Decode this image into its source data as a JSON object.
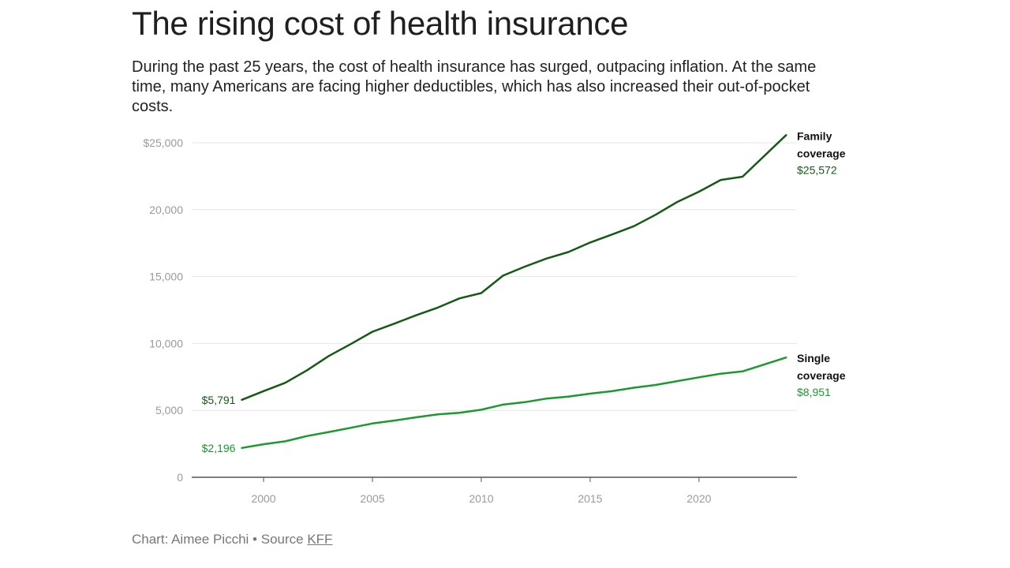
{
  "title": "The rising cost of health insurance",
  "subtitle": "During the past 25 years, the cost of health insurance has surged, outpacing inflation. At the same time, many Americans are facing higher deductibles, which has also increased their out-of-pocket costs.",
  "source": {
    "prefix": "Chart: Aimee Picchi • Source ",
    "link_label": "KFF"
  },
  "colors": {
    "family": "#145a14",
    "single": "#1a9a2e",
    "grid": "#e6e6e6",
    "axis": "#555555"
  },
  "chart_data": {
    "type": "line",
    "title": "The rising cost of health insurance",
    "xlabel": "",
    "ylabel": "",
    "xlim": [
      1996.7,
      2024.5
    ],
    "ylim": [
      0,
      25000
    ],
    "x_ticks": [
      2000,
      2005,
      2010,
      2015,
      2020
    ],
    "x_tick_labels": [
      "2000",
      "2005",
      "2010",
      "2015",
      "2020"
    ],
    "y_ticks": [
      0,
      5000,
      10000,
      15000,
      20000,
      25000
    ],
    "y_tick_labels": [
      "0",
      "5,000",
      "10,000",
      "15,000",
      "20,000",
      "$25,000"
    ],
    "grid": true,
    "x": [
      1999,
      2000,
      2001,
      2002,
      2003,
      2004,
      2005,
      2006,
      2007,
      2008,
      2009,
      2010,
      2011,
      2012,
      2013,
      2014,
      2015,
      2016,
      2017,
      2018,
      2019,
      2020,
      2021,
      2022,
      2024
    ],
    "series": [
      {
        "key": "family",
        "name_line1": "Family",
        "name_line2": "coverage",
        "start_label": "$5,791",
        "end_label": "$25,572",
        "values": [
          5791,
          6438,
          7061,
          8003,
          9068,
          9950,
          10880,
          11480,
          12106,
          12680,
          13375,
          13770,
          15073,
          15745,
          16351,
          16834,
          17545,
          18142,
          18764,
          19616,
          20576,
          21342,
          22221,
          22463,
          25572
        ]
      },
      {
        "key": "single",
        "name_line1": "Single",
        "name_line2": "coverage",
        "start_label": "$2,196",
        "end_label": "$8,951",
        "values": [
          2196,
          2471,
          2689,
          3083,
          3383,
          3695,
          4024,
          4242,
          4479,
          4704,
          4824,
          5049,
          5429,
          5615,
          5884,
          6025,
          6251,
          6435,
          6690,
          6896,
          7188,
          7470,
          7739,
          7911,
          8951
        ]
      }
    ]
  }
}
